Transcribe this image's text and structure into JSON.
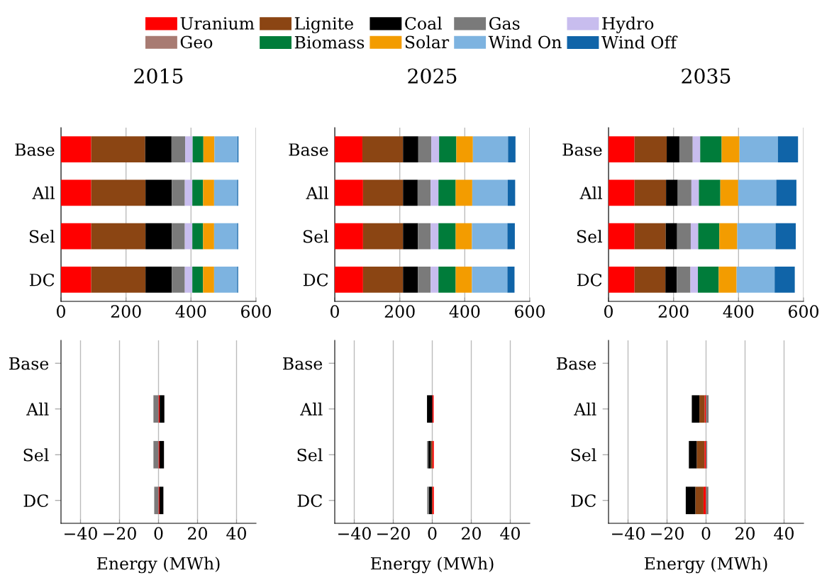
{
  "chart_data": [
    {
      "type": "bar",
      "orientation": "horizontal",
      "stacked": true,
      "title": "2015",
      "categories": [
        "Base",
        "All",
        "Sel",
        "DC"
      ],
      "xlim": [
        0,
        600
      ],
      "xticks": [
        0,
        200,
        400,
        600
      ],
      "grid": "x",
      "legend": "top",
      "series": [
        {
          "name": "Uranium",
          "color": "#ff0000",
          "values": [
            93,
            93,
            93,
            93
          ]
        },
        {
          "name": "Lignite",
          "color": "#8b4513",
          "values": [
            166,
            167,
            167,
            167
          ]
        },
        {
          "name": "Coal",
          "color": "#000000",
          "values": [
            81,
            81,
            81,
            81
          ]
        },
        {
          "name": "Gas",
          "color": "#7a7a7a",
          "values": [
            42,
            40,
            40,
            40
          ]
        },
        {
          "name": "Hydro",
          "color": "#c8bdee",
          "values": [
            23,
            23,
            23,
            23
          ]
        },
        {
          "name": "Geo",
          "color": "#a87b72",
          "values": [
            0,
            0,
            0,
            0
          ]
        },
        {
          "name": "Biomass",
          "color": "#007c3a",
          "values": [
            33,
            33,
            33,
            33
          ]
        },
        {
          "name": "Solar",
          "color": "#f39c00",
          "values": [
            34,
            34,
            34,
            34
          ]
        },
        {
          "name": "Wind On",
          "color": "#7db3e0",
          "values": [
            71,
            71,
            71,
            71
          ]
        },
        {
          "name": "Wind Off",
          "color": "#1064a8",
          "values": [
            3,
            3,
            3,
            3
          ]
        }
      ]
    },
    {
      "type": "bar",
      "orientation": "horizontal",
      "stacked": true,
      "title": "2025",
      "categories": [
        "Base",
        "All",
        "Sel",
        "DC"
      ],
      "xlim": [
        0,
        600
      ],
      "xticks": [
        0,
        200,
        400,
        600
      ],
      "grid": "x",
      "series": [
        {
          "color": "#ff0000",
          "values": [
            85,
            87,
            87,
            87
          ]
        },
        {
          "color": "#8b4513",
          "values": [
            125,
            123,
            123,
            123
          ]
        },
        {
          "color": "#000000",
          "values": [
            47,
            45,
            46,
            46
          ]
        },
        {
          "color": "#7a7a7a",
          "values": [
            40,
            40,
            39,
            39
          ]
        },
        {
          "color": "#c8bdee",
          "values": [
            24,
            24,
            24,
            24
          ]
        },
        {
          "color": "#a87b72",
          "values": [
            0,
            0,
            0,
            0
          ]
        },
        {
          "color": "#007c3a",
          "values": [
            53,
            53,
            53,
            53
          ]
        },
        {
          "color": "#f39c00",
          "values": [
            51,
            51,
            50,
            50
          ]
        },
        {
          "color": "#7db3e0",
          "values": [
            108,
            109,
            109,
            109
          ]
        },
        {
          "color": "#1064a8",
          "values": [
            23,
            23,
            23,
            22
          ]
        }
      ]
    },
    {
      "type": "bar",
      "orientation": "horizontal",
      "stacked": true,
      "title": "2035",
      "categories": [
        "Base",
        "All",
        "Sel",
        "DC"
      ],
      "xlim": [
        0,
        600
      ],
      "xticks": [
        0,
        200,
        400,
        600
      ],
      "grid": "x",
      "series": [
        {
          "color": "#ff0000",
          "values": [
            80,
            80,
            80,
            80
          ]
        },
        {
          "color": "#8b4513",
          "values": [
            99,
            97,
            96,
            95
          ]
        },
        {
          "color": "#000000",
          "values": [
            39,
            36,
            35,
            35
          ]
        },
        {
          "color": "#7a7a7a",
          "values": [
            41,
            42,
            42,
            42
          ]
        },
        {
          "color": "#c8bdee",
          "values": [
            23,
            23,
            23,
            23
          ]
        },
        {
          "color": "#a87b72",
          "values": [
            0,
            0,
            0,
            0
          ]
        },
        {
          "color": "#007c3a",
          "values": [
            66,
            66,
            65,
            64
          ]
        },
        {
          "color": "#f39c00",
          "values": [
            55,
            55,
            55,
            55
          ]
        },
        {
          "color": "#7db3e0",
          "values": [
            118,
            117,
            118,
            117
          ]
        },
        {
          "color": "#1064a8",
          "values": [
            62,
            62,
            62,
            62
          ]
        }
      ]
    },
    {
      "type": "bar",
      "orientation": "horizontal",
      "stacked": true,
      "xlabel": "Energy (MWh)",
      "categories": [
        "Base",
        "All",
        "Sel",
        "DC"
      ],
      "xlim": [
        -50,
        50
      ],
      "xticks": [
        -40,
        -20,
        0,
        20,
        40
      ],
      "grid": "x",
      "series": [
        {
          "color": "#ff0000",
          "values": [
            0,
            0.6,
            0.5,
            0.5
          ]
        },
        {
          "color": "#8b4513",
          "values": [
            0,
            0,
            0,
            0
          ]
        },
        {
          "color": "#000000",
          "values": [
            0,
            2.4,
            2.3,
            2.0
          ]
        },
        {
          "color": "#7a7a7a",
          "values": [
            0,
            -2.6,
            -2.6,
            -2.2
          ]
        }
      ]
    },
    {
      "type": "bar",
      "orientation": "horizontal",
      "stacked": true,
      "xlabel": "Energy (MWh)",
      "categories": [
        "Base",
        "All",
        "Sel",
        "DC"
      ],
      "xlim": [
        -50,
        50
      ],
      "xticks": [
        -40,
        -20,
        0,
        20,
        40
      ],
      "grid": "x",
      "series": [
        {
          "color": "#ff0000",
          "values": [
            0,
            0.7,
            0.8,
            0.8
          ]
        },
        {
          "color": "#8b4513",
          "values": [
            0,
            0,
            -0.7,
            -0.2
          ]
        },
        {
          "color": "#000000",
          "values": [
            0,
            -2.7,
            -1.4,
            -1.6
          ]
        },
        {
          "color": "#7a7a7a",
          "values": [
            0,
            0,
            -0.6,
            -0.8
          ]
        }
      ]
    },
    {
      "type": "bar",
      "orientation": "horizontal",
      "stacked": true,
      "xlabel": "Energy (MWh)",
      "categories": [
        "Base",
        "All",
        "Sel",
        "DC"
      ],
      "xlim": [
        -50,
        50
      ],
      "xticks": [
        -40,
        -20,
        0,
        20,
        40
      ],
      "grid": "x",
      "series": [
        {
          "color": "#ff0000",
          "values": [
            0,
            -0.7,
            -0.8,
            -1.3
          ]
        },
        {
          "color": "#8b4513",
          "values": [
            0,
            -2.7,
            -4.0,
            -4.2
          ]
        },
        {
          "color": "#000000",
          "values": [
            0,
            -3.9,
            -4.0,
            -4.9
          ]
        },
        {
          "color": "#7a7a7a",
          "values": [
            0,
            1.3,
            0.6,
            1.2
          ]
        }
      ]
    }
  ]
}
